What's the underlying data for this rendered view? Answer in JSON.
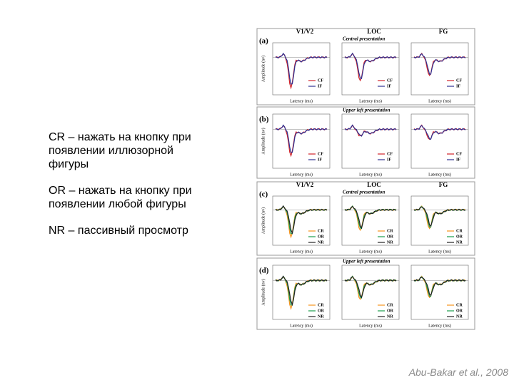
{
  "text": {
    "items": [
      "CR – нажать на кнопку при появлении иллюзорной фигуры",
      "OR – нажать на кнопку при появлении любой фигуры",
      "NR – пассивный просмотр"
    ]
  },
  "figure": {
    "x_label": "Latency (ms)",
    "y_label": "Amplitude (nv)",
    "panels": [
      {
        "label": "(a)",
        "columns": [
          "V1/V2",
          "LOC",
          "FG"
        ],
        "subtitle": "Central presentation",
        "series": [
          {
            "name": "CF",
            "color": "#d2232a"
          },
          {
            "name": "IF",
            "color": "#2e3192"
          }
        ]
      },
      {
        "label": "(b)",
        "subtitle": "Upper left presentation",
        "series": [
          {
            "name": "CF",
            "color": "#d2232a"
          },
          {
            "name": "IF",
            "color": "#2e3192"
          }
        ]
      },
      {
        "label": "(c)",
        "columns": [
          "V1/V2",
          "LOC",
          "FG"
        ],
        "subtitle": "Central presentation",
        "series": [
          {
            "name": "CR",
            "color": "#f7941d"
          },
          {
            "name": "OR",
            "color": "#1b9e4b"
          },
          {
            "name": "NR",
            "color": "#222222"
          }
        ]
      },
      {
        "label": "(d)",
        "subtitle": "Upper left presentation",
        "series": [
          {
            "name": "CR",
            "color": "#f7941d"
          },
          {
            "name": "OR",
            "color": "#1b9e4b"
          },
          {
            "name": "NR",
            "color": "#222222"
          }
        ]
      }
    ]
  },
  "citation": "Abu-Bakar et al., 2008"
}
